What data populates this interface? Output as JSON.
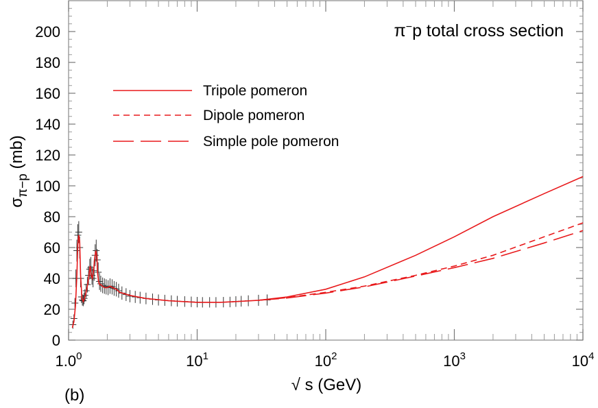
{
  "chart_data": {
    "type": "line",
    "title_prefix": "π",
    "title_sup": "−",
    "title_suffix": "p total cross section",
    "panel_label": "(b)",
    "xlabel": "√ s (GeV)",
    "ylabel_main": "σ",
    "ylabel_sub": "π−p",
    "ylabel_unit": " (mb)",
    "x_scale": "log",
    "xlim": [
      1,
      10000
    ],
    "ylim": [
      0,
      220
    ],
    "y_ticks": [
      0,
      20,
      40,
      60,
      80,
      100,
      120,
      140,
      160,
      180,
      200
    ],
    "y_tick_labels": [
      "0",
      "20",
      "40",
      "60",
      "80",
      "100",
      "120",
      "140",
      "160",
      "180",
      "200"
    ],
    "x_ticks": [
      {
        "value": 1,
        "base": "10",
        "exp": "0",
        "mantissa": "1.0"
      },
      {
        "value": 10,
        "base": "10",
        "exp": "1"
      },
      {
        "value": 100,
        "base": "10",
        "exp": "2"
      },
      {
        "value": 1000,
        "base": "10",
        "exp": "3"
      },
      {
        "value": 10000,
        "base": "10",
        "exp": "4"
      }
    ],
    "grid": false,
    "legend_placement": "upper-left",
    "color": "#e8191b",
    "series": [
      {
        "name": "Tripole pomeron",
        "dash": "solid",
        "x": [
          1.07,
          1.1,
          1.13,
          1.16,
          1.18,
          1.2,
          1.22,
          1.24,
          1.27,
          1.3,
          1.33,
          1.36,
          1.4,
          1.44,
          1.47,
          1.5,
          1.53,
          1.56,
          1.6,
          1.63,
          1.66,
          1.68,
          1.71,
          1.74,
          1.78,
          1.83,
          1.9,
          2.0,
          2.1,
          2.2,
          2.35,
          2.5,
          3.0,
          4.0,
          6.0,
          10,
          15,
          20,
          30,
          50,
          100,
          200,
          500,
          1000,
          2000,
          5000,
          10000
        ],
        "y": [
          8,
          12,
          22,
          42,
          62,
          68,
          64,
          42,
          27,
          25,
          27,
          30,
          35,
          42,
          48,
          42,
          40,
          44,
          54,
          58,
          54,
          44,
          38,
          36,
          36,
          35,
          34,
          34,
          35,
          34,
          33,
          31,
          29,
          27,
          25.5,
          24.5,
          24.5,
          25,
          25.8,
          28,
          33,
          41,
          55,
          67,
          80,
          95,
          106
        ]
      },
      {
        "name": "Dipole pomeron",
        "dash": "dashed",
        "x": [
          30,
          50,
          100,
          200,
          500,
          1000,
          2000,
          5000,
          10000
        ],
        "y": [
          25.8,
          27.5,
          31,
          35,
          42,
          48,
          55,
          67,
          76
        ]
      },
      {
        "name": "Simple pole pomeron",
        "dash": "long-dashed",
        "x": [
          30,
          50,
          100,
          200,
          500,
          1000,
          2000,
          5000,
          10000
        ],
        "y": [
          25.8,
          27.3,
          30.5,
          34.5,
          41.5,
          47,
          53,
          63,
          71
        ]
      }
    ],
    "data_points": {
      "x": [
        1.08,
        1.1,
        1.12,
        1.14,
        1.16,
        1.18,
        1.2,
        1.22,
        1.24,
        1.26,
        1.28,
        1.3,
        1.32,
        1.34,
        1.37,
        1.4,
        1.43,
        1.46,
        1.49,
        1.52,
        1.55,
        1.58,
        1.61,
        1.64,
        1.67,
        1.7,
        1.74,
        1.78,
        1.84,
        1.9,
        1.96,
        2.03,
        2.1,
        2.18,
        2.26,
        2.35,
        2.45,
        2.6,
        2.8,
        3.0,
        3.3,
        3.6,
        4.0,
        4.5,
        5.0,
        5.6,
        6.3,
        7.0,
        8.0,
        9.0,
        10,
        11,
        12.5,
        14,
        16,
        18,
        20,
        22,
        25,
        30,
        35
      ],
      "y": [
        10,
        14,
        24,
        40,
        58,
        68,
        70,
        60,
        40,
        28,
        26,
        25.5,
        27,
        29,
        32,
        36,
        42,
        46,
        47,
        42,
        40,
        45,
        55,
        58,
        52,
        44,
        38,
        36.5,
        35.5,
        35,
        34.5,
        34,
        35,
        34.5,
        33.5,
        33,
        32,
        30.5,
        29.5,
        28.5,
        28,
        27.5,
        27,
        26.5,
        26,
        25.8,
        25.5,
        25.2,
        25,
        24.8,
        24.6,
        24.5,
        24.5,
        24.5,
        24.6,
        24.7,
        25,
        25.2,
        25.5,
        25.8,
        26
      ]
    }
  }
}
